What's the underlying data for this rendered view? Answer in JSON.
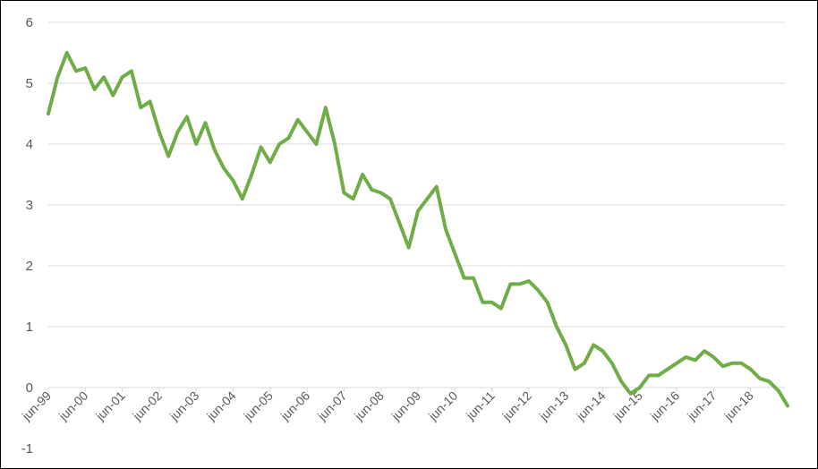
{
  "chart_data": {
    "type": "line",
    "title": "",
    "xlabel": "",
    "ylabel": "",
    "ylim": [
      -1,
      6
    ],
    "yticks": [
      -1,
      0,
      1,
      2,
      3,
      4,
      5,
      6
    ],
    "grid": true,
    "legend": "none",
    "x_tick_labels": [
      "jun-99",
      "jun-00",
      "jun-01",
      "jun-02",
      "jun-03",
      "jun-04",
      "jun-05",
      "jun-06",
      "jun-07",
      "jun-08",
      "jun-09",
      "jun-10",
      "jun-11",
      "jun-12",
      "jun-13",
      "jun-14",
      "jun-15",
      "jun-16",
      "jun-17",
      "jun-18"
    ],
    "series": [
      {
        "color": "#70ad47",
        "x": [
          "1999-06",
          "1999-09",
          "1999-12",
          "2000-03",
          "2000-06",
          "2000-09",
          "2000-12",
          "2001-03",
          "2001-06",
          "2001-09",
          "2001-12",
          "2002-03",
          "2002-06",
          "2002-09",
          "2002-12",
          "2003-03",
          "2003-06",
          "2003-09",
          "2003-12",
          "2004-03",
          "2004-06",
          "2004-09",
          "2004-12",
          "2005-03",
          "2005-06",
          "2005-09",
          "2005-12",
          "2006-03",
          "2006-06",
          "2006-09",
          "2006-12",
          "2007-03",
          "2007-06",
          "2007-09",
          "2007-12",
          "2008-03",
          "2008-06",
          "2008-09",
          "2008-12",
          "2009-03",
          "2009-06",
          "2009-09",
          "2009-12",
          "2010-03",
          "2010-06",
          "2010-09",
          "2010-12",
          "2011-03",
          "2011-06",
          "2011-09",
          "2011-12",
          "2012-03",
          "2012-06",
          "2012-09",
          "2012-12",
          "2013-03",
          "2013-06",
          "2013-09",
          "2013-12",
          "2014-03",
          "2014-06",
          "2014-09",
          "2014-12",
          "2015-03",
          "2015-06",
          "2015-09",
          "2015-12",
          "2016-03",
          "2016-06",
          "2016-09",
          "2016-12",
          "2017-03",
          "2017-06",
          "2017-09",
          "2017-12",
          "2018-03",
          "2018-06",
          "2018-09",
          "2018-12",
          "2019-03",
          "2019-06"
        ],
        "values": [
          4.5,
          5.1,
          5.5,
          5.2,
          5.25,
          4.9,
          5.1,
          4.8,
          5.1,
          5.2,
          4.6,
          4.7,
          4.2,
          3.8,
          4.2,
          4.45,
          4.0,
          4.35,
          3.9,
          3.6,
          3.4,
          3.1,
          3.5,
          3.95,
          3.7,
          4.0,
          4.1,
          4.4,
          4.2,
          4.0,
          4.6,
          4.0,
          3.2,
          3.1,
          3.5,
          3.25,
          3.2,
          3.1,
          2.7,
          2.3,
          2.9,
          3.1,
          3.3,
          2.6,
          2.2,
          1.8,
          1.8,
          1.4,
          1.4,
          1.3,
          1.7,
          1.7,
          1.75,
          1.6,
          1.4,
          1.0,
          0.7,
          0.3,
          0.4,
          0.7,
          0.6,
          0.4,
          0.1,
          -0.1,
          0.0,
          0.2,
          0.2,
          0.3,
          0.4,
          0.5,
          0.45,
          0.6,
          0.5,
          0.35,
          0.4,
          0.4,
          0.3,
          0.15,
          0.1,
          -0.05,
          -0.3
        ]
      }
    ]
  }
}
